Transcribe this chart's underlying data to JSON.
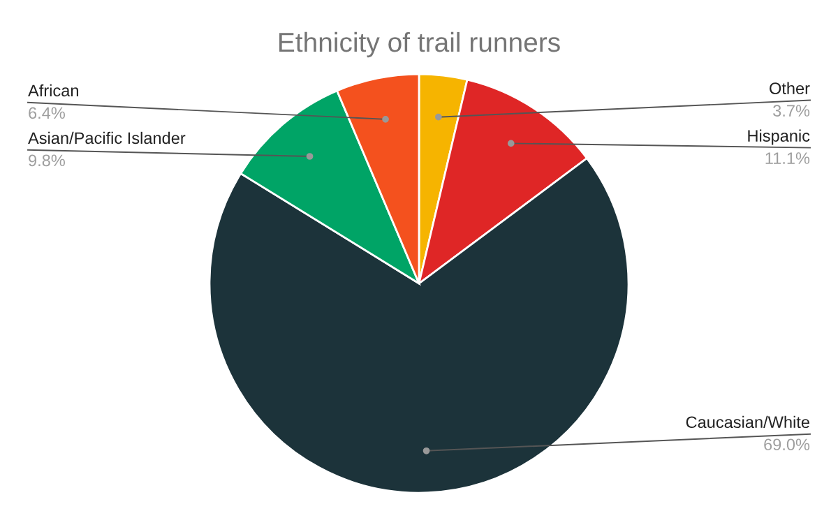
{
  "chart_data": {
    "type": "pie",
    "title": "Ethnicity of trail runners",
    "categories": [
      "Other",
      "Hispanic",
      "Caucasian/White",
      "Asian/Pacific Islander",
      "African"
    ],
    "values": [
      3.7,
      11.1,
      69.0,
      9.8,
      6.4
    ],
    "colors": [
      "#f6b400",
      "#df2626",
      "#1c333a",
      "#00a466",
      "#f4511e"
    ],
    "value_labels": [
      "3.7%",
      "11.1%",
      "69.0%",
      "9.8%",
      "6.4%"
    ],
    "legend": false
  }
}
